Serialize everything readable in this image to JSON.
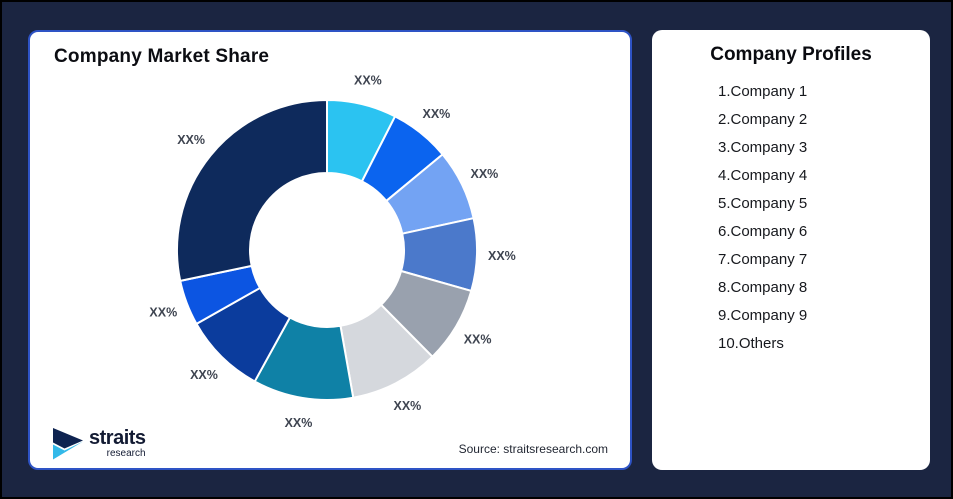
{
  "page": {
    "background_color": "#1B2541",
    "frame_border_color": "#000000"
  },
  "market_share_card": {
    "title": "Company Market Share",
    "border_color": "#2E53C5",
    "source_text": "Source: straitsresearch.com",
    "logo": {
      "wordmark": "straits",
      "subtext": "research",
      "icon_navy": "#0E2350",
      "icon_cyan": "#33B9E9"
    }
  },
  "profiles_card": {
    "title": "Company Profiles",
    "items": [
      "1.Company 1",
      "2.Company 2",
      "3.Company 3",
      "4.Company 4",
      "5.Company 5",
      "6.Company 6",
      "7.Company 7",
      "8.Company 8",
      "9.Company 9",
      "10.Others"
    ]
  },
  "chart_data": {
    "type": "pie",
    "subtype": "donut",
    "title": "Company Market Share",
    "direction": "clockwise",
    "start_angle_deg": 0,
    "donut_hole_ratio": 0.51,
    "legend": "none",
    "label_color": "#3E4450",
    "segment_stroke": "#FFFFFF",
    "segments": [
      {
        "company": "Company 1",
        "label": "XX%",
        "pct_est": 7.5,
        "color": "#2BC3F1"
      },
      {
        "company": "Company 2",
        "label": "XX%",
        "pct_est": 6.5,
        "color": "#0B64EF"
      },
      {
        "company": "Company 3",
        "label": "XX%",
        "pct_est": 7.6,
        "color": "#73A3F3"
      },
      {
        "company": "Company 4",
        "label": "XX%",
        "pct_est": 7.8,
        "color": "#4B79CB"
      },
      {
        "company": "Company 5",
        "label": "XX%",
        "pct_est": 8.2,
        "color": "#99A1AE"
      },
      {
        "company": "Company 6",
        "label": "XX%",
        "pct_est": 9.6,
        "color": "#D5D8DD"
      },
      {
        "company": "Company 7",
        "label": "XX%",
        "pct_est": 10.8,
        "color": "#0F81A6"
      },
      {
        "company": "Company 8",
        "label": "XX%",
        "pct_est": 8.8,
        "color": "#0B3C9D"
      },
      {
        "company": "Company 9",
        "label": "XX%",
        "pct_est": 4.9,
        "color": "#0C55E2"
      },
      {
        "company": "Others",
        "label": "XX%",
        "pct_est": 28.3,
        "color": "#0E2A5C"
      }
    ]
  }
}
